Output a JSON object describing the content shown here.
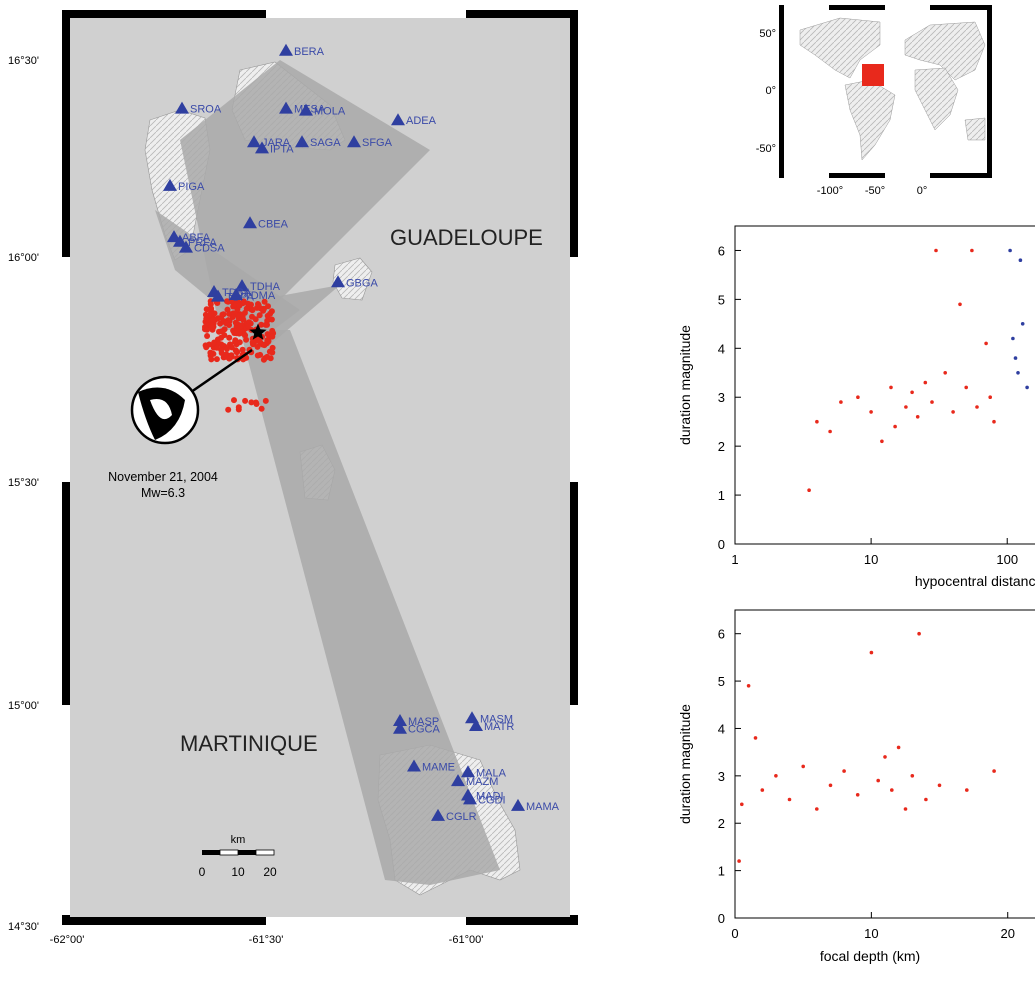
{
  "main_map": {
    "lat_labels": [
      "16°30'",
      "16°00'",
      "15°30'",
      "15°00'",
      "14°30'"
    ],
    "lon_labels": [
      "-62°00'",
      "-61°30'",
      "-61°00'"
    ],
    "region_labels": {
      "guadeloupe": "GUADELOUPE",
      "martinique": "MARTINIQUE"
    },
    "event_caption": [
      "November 21, 2004",
      "Mw=6.3"
    ],
    "scale_bar": {
      "unit": "km",
      "ticks": [
        "0",
        "10",
        "20"
      ]
    },
    "stations": [
      {
        "name": "BERA",
        "lon": -61.46,
        "lat": 16.495
      },
      {
        "name": "SROA",
        "lon": -61.72,
        "lat": 16.345
      },
      {
        "name": "MESA",
        "lon": -61.46,
        "lat": 16.345
      },
      {
        "name": "MOLA",
        "lon": -61.41,
        "lat": 16.34
      },
      {
        "name": "ADEA",
        "lon": -61.18,
        "lat": 16.315
      },
      {
        "name": "JARA",
        "lon": -61.54,
        "lat": 16.258
      },
      {
        "name": "IPTA",
        "lon": -61.52,
        "lat": 16.242
      },
      {
        "name": "SAGA",
        "lon": -61.42,
        "lat": 16.258
      },
      {
        "name": "SFGA",
        "lon": -61.29,
        "lat": 16.258
      },
      {
        "name": "PIGA",
        "lon": -61.75,
        "lat": 16.145
      },
      {
        "name": "CBEA",
        "lon": -61.55,
        "lat": 16.048
      },
      {
        "name": "ABFA",
        "lon": -61.74,
        "lat": 16.012
      },
      {
        "name": "PRFA",
        "lon": -61.725,
        "lat": 16.0
      },
      {
        "name": "CDSA",
        "lon": -61.71,
        "lat": 15.985
      },
      {
        "name": "GBGA",
        "lon": -61.33,
        "lat": 15.895
      },
      {
        "name": "TDHA",
        "lon": -61.57,
        "lat": 15.885
      },
      {
        "name": "TDBA",
        "lon": -61.64,
        "lat": 15.87
      },
      {
        "name": "TBPA",
        "lon": -61.63,
        "lat": 15.858
      },
      {
        "name": "TDMA",
        "lon": -61.585,
        "lat": 15.862
      },
      {
        "name": "MASP",
        "lon": -61.175,
        "lat": 14.758
      },
      {
        "name": "CGCA",
        "lon": -61.175,
        "lat": 14.738
      },
      {
        "name": "MASM",
        "lon": -60.995,
        "lat": 14.765
      },
      {
        "name": "MATR",
        "lon": -60.985,
        "lat": 14.745
      },
      {
        "name": "MAME",
        "lon": -61.14,
        "lat": 14.64
      },
      {
        "name": "MALA",
        "lon": -61.005,
        "lat": 14.625
      },
      {
        "name": "MAZM",
        "lon": -61.03,
        "lat": 14.602
      },
      {
        "name": "MADI",
        "lon": -61.005,
        "lat": 14.565
      },
      {
        "name": "CGDI",
        "lon": -61.0,
        "lat": 14.555
      },
      {
        "name": "MAMA",
        "lon": -60.88,
        "lat": 14.538
      },
      {
        "name": "CGLR",
        "lon": -61.08,
        "lat": 14.512
      }
    ],
    "epicenter": {
      "lon": -61.53,
      "lat": 15.765
    },
    "colors": {
      "sea": "#d0d0d0",
      "rays": "#a9a9a9",
      "station": "#2f3fa0",
      "events": "#e8291c",
      "label": "#3a4aa8"
    }
  },
  "inset_map": {
    "lat_labels": [
      "50°",
      "0°",
      "-50°"
    ],
    "lon_labels": [
      "-100°",
      "-50°",
      "0°"
    ],
    "marker_color": "#e8291c"
  },
  "chart_data": [
    {
      "type": "scatter",
      "xlabel": "hypocentral distance (km)",
      "ylabel": "duration magnitude",
      "xscale": "log",
      "xlim": [
        1,
        160
      ],
      "ylim": [
        0,
        6.5
      ],
      "xticks": [
        "1",
        "10",
        "100"
      ],
      "yticks": [
        "0",
        "1",
        "2",
        "3",
        "4",
        "5",
        "6"
      ],
      "series": [
        {
          "color": "#e8291c",
          "points": [
            [
              3.5,
              1.1
            ],
            [
              4,
              2.5
            ],
            [
              5,
              2.3
            ],
            [
              6,
              2.9
            ],
            [
              8,
              3.0
            ],
            [
              10,
              2.7
            ],
            [
              12,
              2.1
            ],
            [
              14,
              3.2
            ],
            [
              15,
              2.4
            ],
            [
              18,
              2.8
            ],
            [
              20,
              3.1
            ],
            [
              22,
              2.6
            ],
            [
              25,
              3.3
            ],
            [
              28,
              2.9
            ],
            [
              30,
              6.0
            ],
            [
              35,
              3.5
            ],
            [
              40,
              2.7
            ],
            [
              45,
              4.9
            ],
            [
              50,
              3.2
            ],
            [
              55,
              6.0
            ],
            [
              60,
              2.8
            ],
            [
              70,
              4.1
            ],
            [
              75,
              3.0
            ],
            [
              80,
              2.5
            ]
          ]
        },
        {
          "color": "#2f3fa0",
          "points": [
            [
              105,
              6.0
            ],
            [
              110,
              4.2
            ],
            [
              115,
              3.8
            ],
            [
              120,
              3.5
            ],
            [
              125,
              5.8
            ],
            [
              130,
              4.5
            ],
            [
              140,
              3.2
            ]
          ]
        }
      ]
    },
    {
      "type": "scatter",
      "xlabel": "focal depth (km)",
      "ylabel": "duration magnitude",
      "xlim": [
        0,
        22
      ],
      "ylim": [
        0,
        6.5
      ],
      "xticks": [
        "0",
        "10",
        "20"
      ],
      "yticks": [
        "0",
        "1",
        "2",
        "3",
        "4",
        "5",
        "6"
      ],
      "series": [
        {
          "color": "#e8291c",
          "points": [
            [
              0.3,
              1.2
            ],
            [
              0.5,
              2.4
            ],
            [
              1,
              4.9
            ],
            [
              1.5,
              3.8
            ],
            [
              2,
              2.7
            ],
            [
              3,
              3.0
            ],
            [
              4,
              2.5
            ],
            [
              5,
              3.2
            ],
            [
              6,
              2.3
            ],
            [
              7,
              2.8
            ],
            [
              8,
              3.1
            ],
            [
              9,
              2.6
            ],
            [
              10,
              5.6
            ],
            [
              10.5,
              2.9
            ],
            [
              11,
              3.4
            ],
            [
              11.5,
              2.7
            ],
            [
              12,
              3.6
            ],
            [
              12.5,
              2.3
            ],
            [
              13,
              3.0
            ],
            [
              13.5,
              6.0
            ],
            [
              14,
              2.5
            ],
            [
              15,
              2.8
            ],
            [
              17,
              2.7
            ],
            [
              19,
              3.1
            ]
          ]
        }
      ]
    }
  ]
}
